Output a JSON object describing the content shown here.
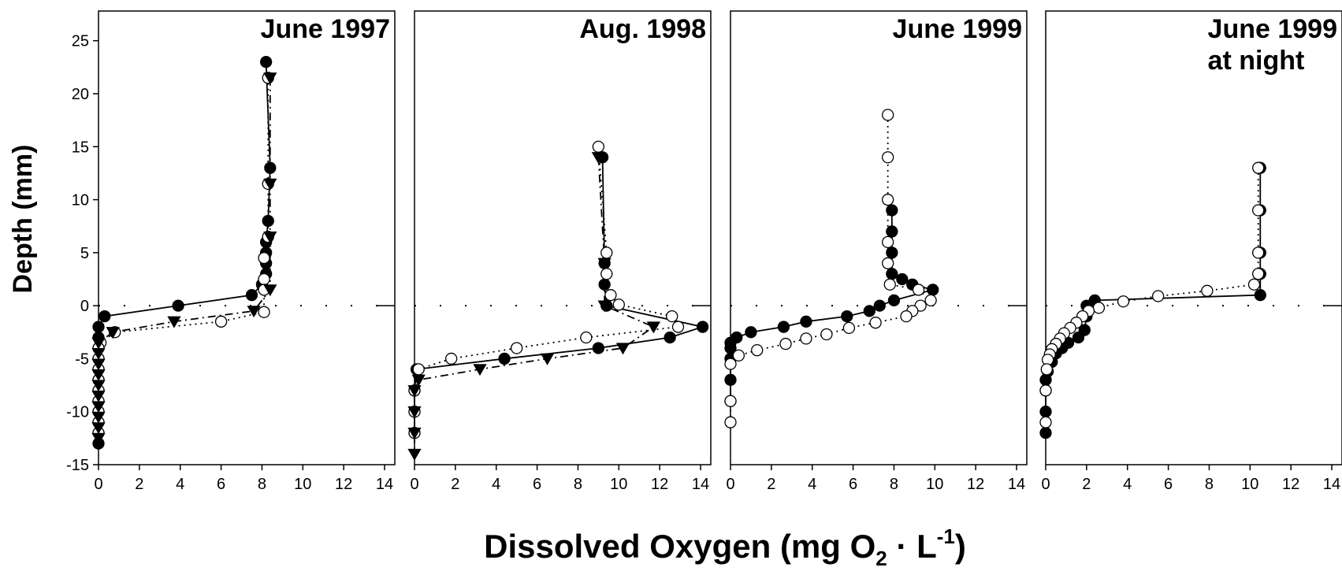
{
  "ylabel": "Depth (mm)",
  "xlabel": [
    "Dissolved Oxygen (mg O",
    "2",
    " · L",
    "-1",
    ")"
  ],
  "chart_data": [
    {
      "type": "scatter-line",
      "title": [
        "June 1997"
      ],
      "xlim": [
        0,
        14.5
      ],
      "xticks": [
        0,
        2,
        4,
        6,
        8,
        10,
        12,
        14
      ],
      "ylim": [
        -15,
        27.8
      ],
      "yticks": [
        -15,
        -10,
        -5,
        0,
        5,
        10,
        15,
        20,
        25
      ],
      "hline": 0,
      "series": [
        {
          "marker": "filled-circle",
          "line": "solid",
          "x": [
            8.2,
            8.4,
            8.3,
            8.2,
            8.2,
            8.2,
            8.2,
            8.0,
            7.5,
            3.9,
            0.3,
            0,
            0,
            0,
            0,
            0,
            0,
            0,
            0,
            0,
            0,
            0,
            0
          ],
          "values": [
            23,
            13,
            8,
            6,
            5,
            4,
            3,
            2,
            1,
            0,
            -1,
            -2,
            -3,
            -4,
            -5,
            -6,
            -7,
            -8,
            -9,
            -10,
            -11,
            -12,
            -13
          ]
        },
        {
          "marker": "open-circle",
          "line": "dotted",
          "x": [
            8.3,
            8.3,
            8.3,
            8.1,
            8.1,
            8.1,
            8.1,
            6.0,
            0.8,
            0.1,
            0,
            0,
            0,
            0,
            0,
            0,
            0,
            0,
            0
          ],
          "values": [
            21.5,
            11.5,
            6.5,
            4.5,
            2.5,
            1.5,
            -0.6,
            -1.5,
            -2.5,
            -3.5,
            -4,
            -5,
            -6,
            -7,
            -8,
            -9,
            -10,
            -11,
            -12
          ]
        },
        {
          "marker": "triangle",
          "line": "dashdot",
          "x": [
            8.4,
            8.4,
            8.4,
            8.4,
            7.6,
            3.7,
            0.7,
            0,
            0,
            0,
            0,
            0,
            0,
            0,
            0,
            0,
            0
          ],
          "values": [
            21.5,
            11.5,
            6.5,
            1.5,
            -0.5,
            -1.5,
            -2.5,
            -3.5,
            -4.5,
            -5.5,
            -6.5,
            -7.5,
            -8.5,
            -9.5,
            -10.5,
            -11.5,
            -12.5
          ]
        }
      ]
    },
    {
      "type": "scatter-line",
      "title": [
        "Aug. 1998"
      ],
      "xlim": [
        0,
        14.5
      ],
      "xticks": [
        0,
        2,
        4,
        6,
        8,
        10,
        12,
        14
      ],
      "ylim": [
        -15,
        27.8
      ],
      "hline": 0,
      "series": [
        {
          "marker": "filled-circle",
          "line": "solid",
          "x": [
            9.2,
            9.3,
            9.3,
            9.4,
            14.1,
            12.5,
            9.0,
            4.4,
            0.1,
            0,
            0,
            0
          ],
          "values": [
            14,
            4,
            2,
            0,
            -2,
            -3,
            -4,
            -5,
            -6,
            -8,
            -10,
            -12
          ]
        },
        {
          "marker": "open-circle",
          "line": "dotted",
          "x": [
            9.0,
            9.4,
            9.4,
            9.6,
            10.0,
            12.6,
            12.9,
            8.4,
            5.0,
            1.8,
            0.2,
            0,
            0,
            0
          ],
          "values": [
            15,
            5,
            3,
            1,
            0.1,
            -1,
            -2,
            -3,
            -4,
            -5,
            -6,
            -8,
            -10,
            -12
          ]
        },
        {
          "marker": "triangle",
          "line": "dashdot",
          "x": [
            9.0,
            9.3,
            9.3,
            11.7,
            10.2,
            6.5,
            3.2,
            0.2,
            0,
            0,
            0,
            0
          ],
          "values": [
            14,
            4,
            0,
            -2,
            -4,
            -5,
            -6,
            -7,
            -8,
            -10,
            -12,
            -14
          ]
        }
      ]
    },
    {
      "type": "scatter-line",
      "title": [
        "June 1999"
      ],
      "xlim": [
        0,
        14.5
      ],
      "xticks": [
        0,
        2,
        4,
        6,
        8,
        10,
        12,
        14
      ],
      "ylim": [
        -15,
        27.8
      ],
      "hline": 0,
      "series": [
        {
          "marker": "filled-circle",
          "line": "solid",
          "x": [
            7.9,
            7.9,
            7.9,
            7.9,
            8.4,
            8.9,
            9.9,
            8.0,
            7.3,
            6.8,
            5.7,
            3.7,
            2.6,
            1.0,
            0.3,
            0,
            0,
            0,
            0,
            0
          ],
          "values": [
            9,
            7,
            5,
            3,
            2.5,
            2,
            1.5,
            0.5,
            0,
            -0.5,
            -1,
            -1.5,
            -2,
            -2.5,
            -3,
            -3.5,
            -4,
            -5,
            -7,
            -9
          ]
        },
        {
          "marker": "open-circle",
          "line": "dotted",
          "x": [
            7.7,
            7.7,
            7.7,
            7.7,
            7.7,
            7.8,
            9.2,
            9.8,
            9.3,
            8.9,
            8.6,
            7.1,
            5.8,
            4.7,
            3.7,
            2.7,
            1.3,
            0.4,
            0,
            0,
            0
          ],
          "values": [
            18,
            14,
            10,
            6,
            4,
            2,
            1.5,
            0.5,
            0,
            -0.5,
            -1,
            -1.6,
            -2.1,
            -2.7,
            -3.1,
            -3.6,
            -4.2,
            -4.7,
            -5.5,
            -9,
            -11
          ]
        }
      ]
    },
    {
      "type": "scatter-line",
      "title": [
        "June 1999",
        "at night"
      ],
      "xlim": [
        0,
        14.5
      ],
      "xticks": [
        0,
        2,
        4,
        6,
        8,
        10,
        12,
        14
      ],
      "ylim": [
        -15,
        27.8
      ],
      "hline": 0,
      "series": [
        {
          "marker": "filled-circle",
          "line": "solid",
          "x": [
            10.5,
            10.5,
            10.5,
            10.5,
            10.5,
            2.4,
            2.0,
            2.0,
            1.9,
            1.6,
            1.1,
            0.8,
            0.5,
            0.3,
            0.1,
            0,
            0,
            0,
            0
          ],
          "values": [
            13,
            9,
            5,
            3,
            1,
            0.5,
            0,
            -1,
            -2.3,
            -3,
            -3.5,
            -4,
            -4.5,
            -5.3,
            -6.2,
            -7,
            -8,
            -10,
            -12
          ]
        },
        {
          "marker": "open-circle",
          "line": "dotted",
          "x": [
            10.4,
            10.4,
            10.4,
            10.4,
            10.2,
            7.9,
            5.5,
            3.8,
            2.6,
            2.1,
            1.8,
            1.5,
            1.2,
            0.9,
            0.7,
            0.5,
            0.3,
            0.2,
            0.1,
            0.05,
            0,
            0
          ],
          "values": [
            13,
            9,
            5,
            3,
            2,
            1.4,
            0.9,
            0.4,
            -0.2,
            -0.5,
            -1,
            -1.6,
            -2.1,
            -2.6,
            -3.1,
            -3.6,
            -4.1,
            -4.6,
            -5.1,
            -6,
            -8,
            -11
          ]
        }
      ]
    }
  ]
}
